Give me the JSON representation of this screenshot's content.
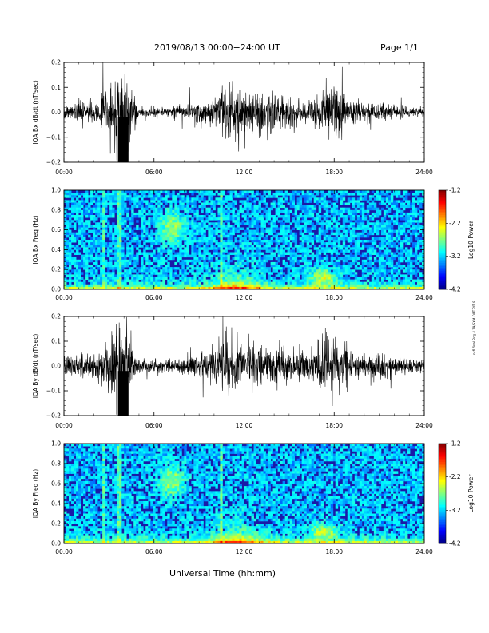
{
  "header": {
    "title": "2019/08/13  00:00−24:00 UT",
    "page_label": "Page 1/1"
  },
  "xlabel": "Universal Time (hh:mm)",
  "side_note": "nsfl final Rng 4.19/SXM OUT 2019",
  "x_ticks": [
    "00:00",
    "06:00",
    "12:00",
    "18:00",
    "24:00"
  ],
  "colorbar": {
    "ticks": [
      "-1.2",
      "-2.2",
      "-3.2",
      "-4.2"
    ],
    "label": "Log10 Power",
    "range": [
      -4.2,
      -1.2
    ]
  },
  "chart_data": [
    {
      "type": "line",
      "title": "IQA Bx dB/dt",
      "ylabel": "IQA Bx dB/dt (nT/sec)",
      "y_ticks": [
        "0.2",
        "0.1",
        "0.0",
        "−0.1",
        "−0.2"
      ],
      "ylim": [
        -0.2,
        0.2
      ],
      "xlim_hours": [
        0,
        24
      ],
      "envelope": {
        "hours": [
          0,
          1,
          2,
          2.5,
          3,
          3.5,
          3.8,
          4.1,
          4.4,
          5,
          6,
          7,
          8,
          9,
          10,
          10.5,
          11,
          11.5,
          12,
          13,
          14,
          15,
          16,
          17,
          17.5,
          18,
          19,
          20,
          21,
          22,
          23,
          24
        ],
        "amplitude": [
          0.03,
          0.04,
          0.05,
          0.07,
          0.1,
          0.2,
          0.2,
          0.2,
          0.12,
          0.02,
          0.02,
          0.02,
          0.03,
          0.05,
          0.07,
          0.1,
          0.12,
          0.1,
          0.08,
          0.09,
          0.09,
          0.06,
          0.05,
          0.08,
          0.12,
          0.1,
          0.06,
          0.04,
          0.04,
          0.03,
          0.02,
          0.02
        ]
      }
    },
    {
      "type": "heatmap",
      "title": "IQA Bx Freq",
      "ylabel": "IQA Bx Freq (Hz)",
      "y_ticks": [
        "1.0",
        "0.8",
        "0.6",
        "0.4",
        "0.2",
        "0.0"
      ],
      "ylim": [
        0,
        1.0
      ],
      "xlim_hours": [
        0,
        24
      ],
      "value_label": "Log10 Power"
    },
    {
      "type": "line",
      "title": "IQA By dB/dt",
      "ylabel": "IQA By dB/dt (nT/sec)",
      "y_ticks": [
        "0.2",
        "0.1",
        "0.0",
        "−0.1",
        "−0.2"
      ],
      "ylim": [
        -0.2,
        0.2
      ],
      "xlim_hours": [
        0,
        24
      ],
      "envelope": {
        "hours": [
          0,
          1,
          2,
          2.5,
          3,
          3.5,
          3.8,
          4.1,
          4.4,
          5,
          6,
          7,
          8,
          9,
          10,
          10.5,
          11,
          11.5,
          12,
          13,
          14,
          15,
          16,
          17,
          17.5,
          18,
          19,
          20,
          21,
          22,
          23,
          24
        ],
        "amplitude": [
          0.04,
          0.05,
          0.06,
          0.08,
          0.12,
          0.2,
          0.2,
          0.2,
          0.14,
          0.03,
          0.03,
          0.03,
          0.04,
          0.05,
          0.08,
          0.12,
          0.14,
          0.1,
          0.08,
          0.09,
          0.09,
          0.07,
          0.06,
          0.09,
          0.14,
          0.12,
          0.07,
          0.05,
          0.05,
          0.04,
          0.03,
          0.03
        ]
      }
    },
    {
      "type": "heatmap",
      "title": "IQA By Freq",
      "ylabel": "IQA By Freq (Hz)",
      "y_ticks": [
        "1.0",
        "0.8",
        "0.6",
        "0.4",
        "0.2",
        "0.0"
      ],
      "ylim": [
        0,
        1.0
      ],
      "xlim_hours": [
        0,
        24
      ],
      "value_label": "Log10 Power"
    }
  ]
}
